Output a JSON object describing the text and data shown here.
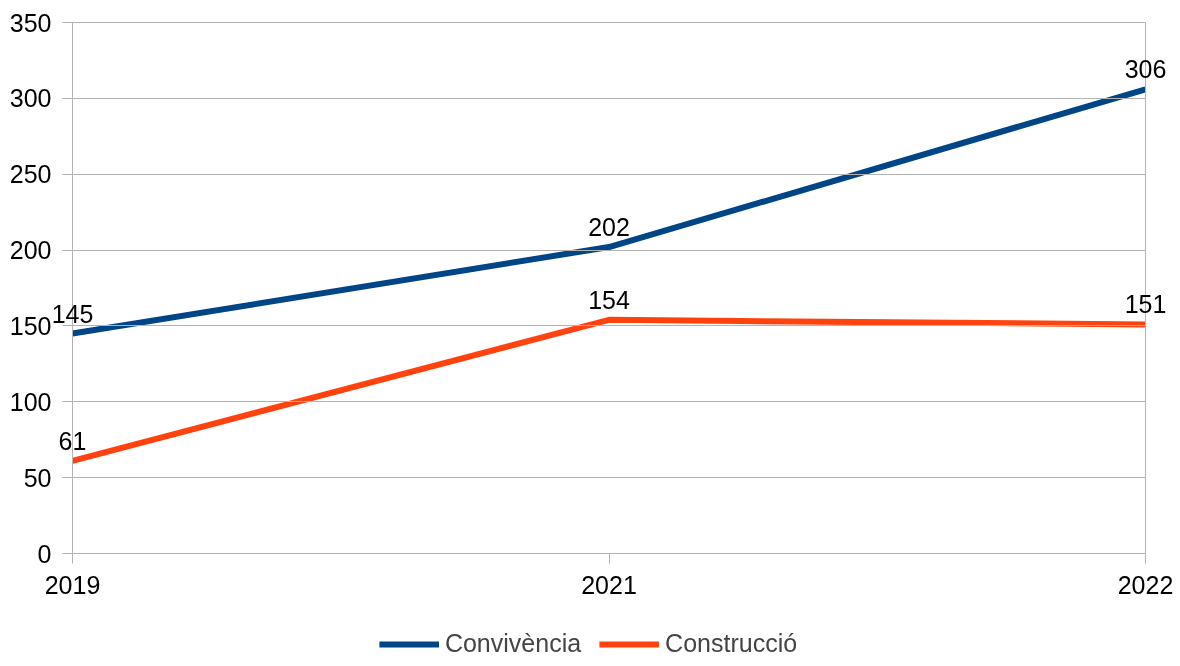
{
  "chart_data": {
    "type": "line",
    "categories": [
      "2019",
      "2021",
      "2022"
    ],
    "series": [
      {
        "name": "Convivència",
        "color": "#004586",
        "values": [
          145,
          202,
          306
        ]
      },
      {
        "name": "Construcció",
        "color": "#ff420e",
        "values": [
          61,
          154,
          151
        ]
      }
    ],
    "ylim": [
      0,
      350
    ],
    "yticks": [
      0,
      50,
      100,
      150,
      200,
      250,
      300,
      350
    ],
    "grid": "y",
    "legend": "bottom",
    "data_labels": true,
    "line_style": "solid"
  }
}
